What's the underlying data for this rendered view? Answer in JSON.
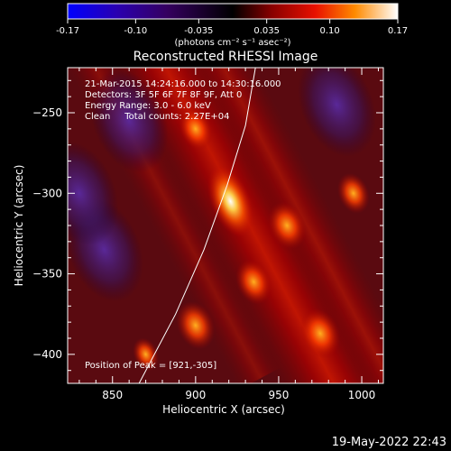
{
  "chart_data": {
    "type": "heatmap",
    "title": "Reconstructed RHESSI Image",
    "xlabel": "Heliocentric X (arcsec)",
    "ylabel": "Heliocentric Y (arcsec)",
    "xlim": [
      823,
      1013
    ],
    "ylim": [
      -418,
      -222
    ],
    "x_ticks": [
      850,
      900,
      950,
      1000
    ],
    "y_ticks": [
      -250,
      -300,
      -350,
      -400
    ],
    "colorbar": {
      "min": -0.17,
      "max": 0.17,
      "ticks": [
        "-0.17",
        "-0.10",
        "-0.035",
        "0.035",
        "0.10",
        "0.17"
      ],
      "units_label": "(photons cm⁻² s⁻¹ asec⁻²)"
    },
    "annotations": {
      "time_range": "21-Mar-2015 14:24:16.000 to 14:30:16.000",
      "detectors": "Detectors: 3F 5F 6F 7F 8F 9F, Att 0",
      "energy": "Energy Range: 3.0 - 6.0 keV",
      "algorithm": "Clean     Total counts: 2.27E+04",
      "peak": "Position of Peak = [921,-305]"
    },
    "peak_position": [
      921,
      -305
    ],
    "sources": [
      {
        "x": 921,
        "y": -305,
        "intensity": 0.17
      },
      {
        "x": 955,
        "y": -320,
        "intensity": 0.11
      },
      {
        "x": 900,
        "y": -260,
        "intensity": 0.09
      },
      {
        "x": 935,
        "y": -355,
        "intensity": 0.1
      },
      {
        "x": 975,
        "y": -387,
        "intensity": 0.12
      },
      {
        "x": 900,
        "y": -382,
        "intensity": 0.11
      },
      {
        "x": 995,
        "y": -300,
        "intensity": 0.08
      },
      {
        "x": 870,
        "y": -400,
        "intensity": 0.05
      },
      {
        "x": 845,
        "y": -335,
        "intensity": -0.1
      },
      {
        "x": 860,
        "y": -255,
        "intensity": -0.11
      },
      {
        "x": 985,
        "y": -245,
        "intensity": -0.08
      },
      {
        "x": 830,
        "y": -300,
        "intensity": -0.12
      }
    ],
    "limb_points": [
      [
        866,
        -418
      ],
      [
        888,
        -375
      ],
      [
        905,
        -335
      ],
      [
        919,
        -295
      ],
      [
        930,
        -258
      ],
      [
        936,
        -222
      ]
    ]
  },
  "footer": {
    "timestamp": "19-May-2022 22:43"
  }
}
